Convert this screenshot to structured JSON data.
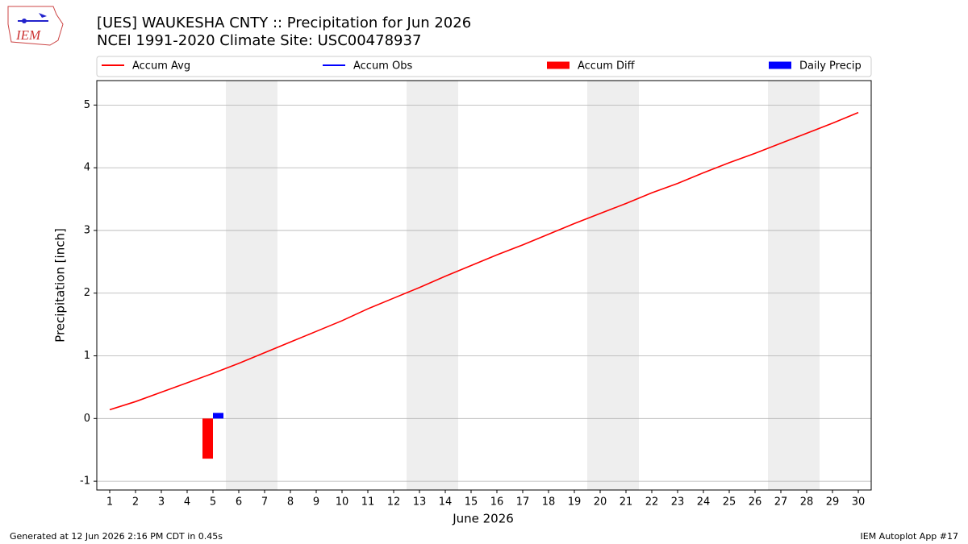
{
  "chart_data": {
    "type": "combo",
    "title": "[UES] WAUKESHA CNTY :: Precipitation for Jun 2026",
    "subtitle": "NCEI 1991-2020 Climate Site: USC00478937",
    "logo_text": "IEM",
    "x_label": "June 2026",
    "y_label": "Precipitation [inch]",
    "footer_left": "Generated at 12 Jun 2026 2:16 PM CDT in 0.45s",
    "footer_right": "IEM Autoplot App #17",
    "x": [
      1,
      2,
      3,
      4,
      5,
      6,
      7,
      8,
      9,
      10,
      11,
      12,
      13,
      14,
      15,
      16,
      17,
      18,
      19,
      20,
      21,
      22,
      23,
      24,
      25,
      26,
      27,
      28,
      29,
      30
    ],
    "xlim": [
      0.5,
      30.5
    ],
    "xticks": [
      1,
      2,
      3,
      4,
      5,
      6,
      7,
      8,
      9,
      10,
      11,
      12,
      13,
      14,
      15,
      16,
      17,
      18,
      19,
      20,
      21,
      22,
      23,
      24,
      25,
      26,
      27,
      28,
      29,
      30
    ],
    "ylim": [
      -1.14,
      5.39
    ],
    "yticks": [
      -1,
      0,
      1,
      2,
      3,
      4,
      5
    ],
    "grid": true,
    "shaded_spans": [
      [
        5.5,
        7.5
      ],
      [
        12.5,
        14.5
      ],
      [
        19.5,
        21.5
      ],
      [
        26.5,
        28.5
      ]
    ],
    "series": [
      {
        "name": "Accum Avg",
        "type": "line",
        "color": "#ff0000",
        "values": [
          0.14,
          0.27,
          0.42,
          0.57,
          0.72,
          0.88,
          1.05,
          1.22,
          1.39,
          1.56,
          1.75,
          1.92,
          2.09,
          2.27,
          2.44,
          2.61,
          2.77,
          2.94,
          3.11,
          3.27,
          3.43,
          3.6,
          3.75,
          3.92,
          4.08,
          4.23,
          4.39,
          4.55,
          4.71,
          4.88
        ]
      },
      {
        "name": "Accum Obs",
        "type": "line",
        "color": "#0000ff",
        "values": [
          null,
          null,
          null,
          null,
          0.09,
          null,
          null,
          null,
          null,
          null,
          null,
          null,
          null,
          null,
          null,
          null,
          null,
          null,
          null,
          null,
          null,
          null,
          null,
          null,
          null,
          null,
          null,
          null,
          null,
          null
        ]
      },
      {
        "name": "Accum Diff",
        "type": "bar",
        "color": "#ff0000",
        "values": [
          null,
          null,
          null,
          null,
          -0.64,
          null,
          null,
          null,
          null,
          null,
          null,
          null,
          null,
          null,
          null,
          null,
          null,
          null,
          null,
          null,
          null,
          null,
          null,
          null,
          null,
          null,
          null,
          null,
          null,
          null
        ]
      },
      {
        "name": "Daily Precip",
        "type": "bar",
        "color": "#0000ff",
        "values": [
          null,
          null,
          null,
          null,
          0.09,
          null,
          null,
          null,
          null,
          null,
          null,
          null,
          null,
          null,
          null,
          null,
          null,
          null,
          null,
          null,
          null,
          null,
          null,
          null,
          null,
          null,
          null,
          null,
          null,
          null
        ]
      }
    ]
  }
}
